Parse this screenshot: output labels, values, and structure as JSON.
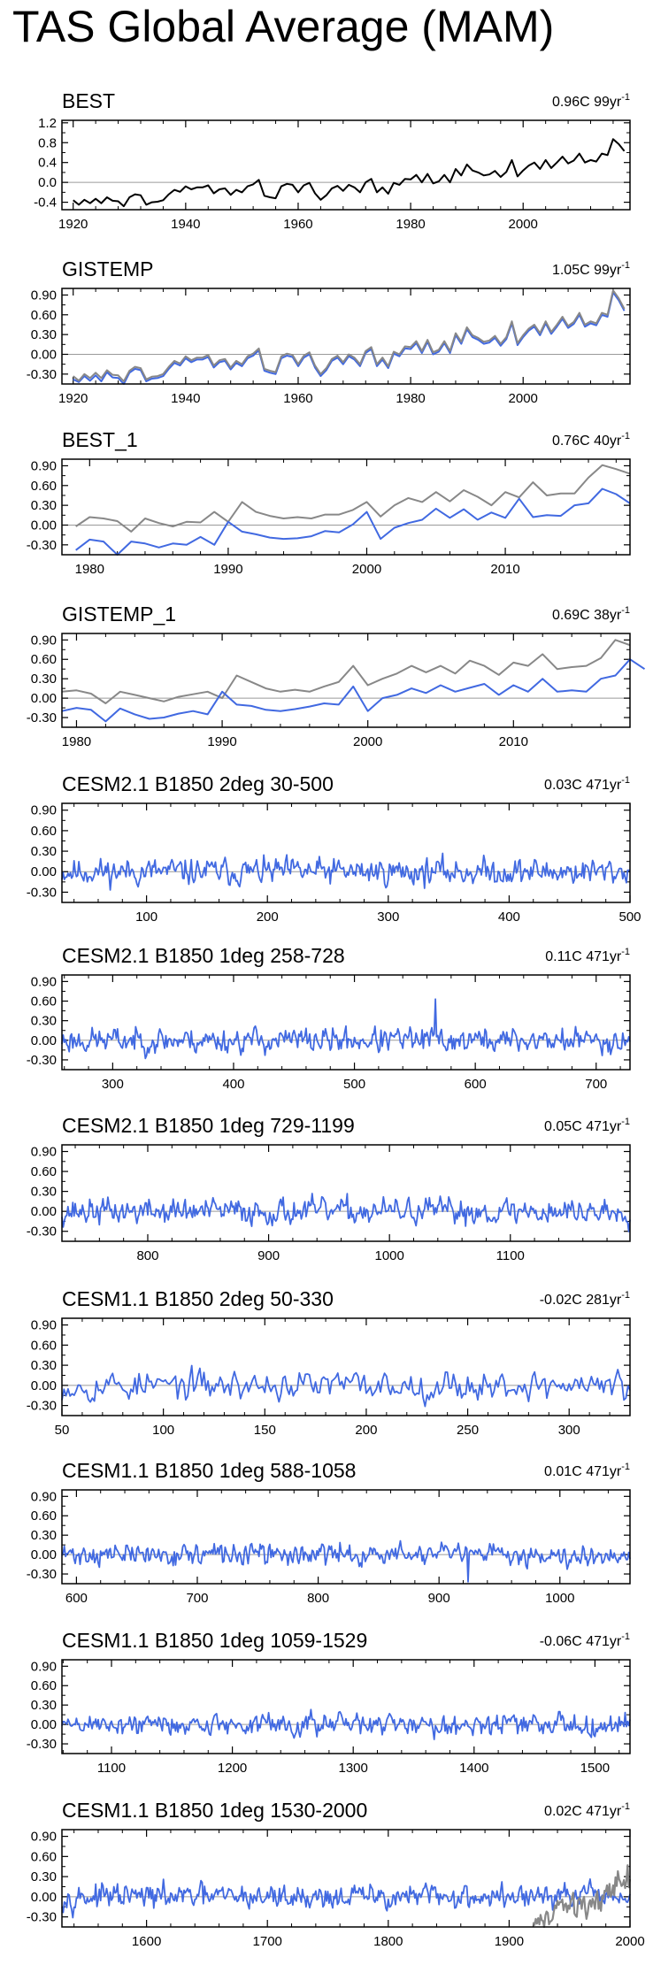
{
  "title": "TAS Global Average (MAM)",
  "colors": {
    "observed": "#000000",
    "model": "#4169e1",
    "reference": "#888888",
    "zero": "#aaaaaa"
  },
  "chart_data": [
    {
      "type": "line",
      "title": "BEST",
      "trend": "0.96C 99yr",
      "trend_base": "0.96C 99yr",
      "trend_exp": "-1",
      "xlim": [
        1918,
        2019
      ],
      "ylim": [
        -0.55,
        1.25
      ],
      "xticks": [
        1920,
        1940,
        1960,
        1980,
        2000
      ],
      "yticks": [
        -0.4,
        0.0,
        0.4,
        0.8,
        1.2
      ],
      "ytick_labels": [
        "-0.4",
        "0.0",
        "0.4",
        "0.8",
        "1.2"
      ],
      "series": [
        {
          "name": "BEST",
          "color": "#000000",
          "x0": 1920,
          "dx": 1,
          "values": [
            -0.36,
            -0.45,
            -0.35,
            -0.42,
            -0.33,
            -0.42,
            -0.3,
            -0.37,
            -0.38,
            -0.48,
            -0.3,
            -0.24,
            -0.26,
            -0.45,
            -0.4,
            -0.39,
            -0.36,
            -0.24,
            -0.15,
            -0.19,
            -0.08,
            -0.14,
            -0.1,
            -0.1,
            -0.06,
            -0.22,
            -0.14,
            -0.12,
            -0.25,
            -0.15,
            -0.2,
            -0.08,
            -0.04,
            0.05,
            -0.27,
            -0.3,
            -0.32,
            -0.08,
            -0.03,
            -0.05,
            -0.2,
            -0.06,
            -0.01,
            -0.22,
            -0.35,
            -0.26,
            -0.12,
            -0.07,
            -0.17,
            -0.05,
            -0.1,
            -0.2,
            0.0,
            0.07,
            -0.2,
            -0.1,
            -0.23,
            -0.01,
            -0.05,
            0.07,
            0.06,
            0.15,
            0.0,
            0.17,
            -0.02,
            0.02,
            0.15,
            0.0,
            0.27,
            0.14,
            0.36,
            0.24,
            0.2,
            0.14,
            0.16,
            0.23,
            0.11,
            0.21,
            0.45,
            0.12,
            0.24,
            0.34,
            0.4,
            0.27,
            0.45,
            0.29,
            0.4,
            0.52,
            0.38,
            0.44,
            0.58,
            0.4,
            0.45,
            0.42,
            0.58,
            0.55,
            0.87,
            0.77,
            0.63
          ]
        }
      ],
      "zero": 0
    },
    {
      "type": "line",
      "title": "GISTEMP",
      "trend": "1.05C 99yr",
      "trend_base": "1.05C 99yr",
      "trend_exp": "-1",
      "xlim": [
        1918,
        2019
      ],
      "ylim": [
        -0.45,
        1.0
      ],
      "xticks": [
        1920,
        1940,
        1960,
        1980,
        2000
      ],
      "yticks": [
        -0.3,
        0.0,
        0.3,
        0.6,
        0.9
      ],
      "ytick_labels": [
        "-0.30",
        "0.00",
        "0.30",
        "0.60",
        "0.90"
      ],
      "series": [
        {
          "name": "GISTEMP",
          "color": "#4169e1",
          "x0": 1920,
          "dx": 1,
          "values": [
            -0.38,
            -0.42,
            -0.33,
            -0.4,
            -0.32,
            -0.41,
            -0.27,
            -0.35,
            -0.36,
            -0.45,
            -0.28,
            -0.22,
            -0.24,
            -0.41,
            -0.37,
            -0.36,
            -0.33,
            -0.22,
            -0.13,
            -0.17,
            -0.06,
            -0.12,
            -0.08,
            -0.08,
            -0.04,
            -0.2,
            -0.12,
            -0.1,
            -0.23,
            -0.13,
            -0.18,
            -0.06,
            -0.02,
            0.06,
            -0.25,
            -0.28,
            -0.3,
            -0.06,
            -0.02,
            -0.04,
            -0.18,
            -0.05,
            0.0,
            -0.2,
            -0.33,
            -0.24,
            -0.1,
            -0.05,
            -0.15,
            -0.03,
            -0.08,
            -0.18,
            0.02,
            0.08,
            -0.18,
            -0.08,
            -0.21,
            0.01,
            -0.03,
            0.09,
            0.08,
            0.17,
            0.02,
            0.19,
            0.0,
            0.04,
            0.17,
            0.02,
            0.29,
            0.16,
            0.38,
            0.26,
            0.22,
            0.16,
            0.18,
            0.25,
            0.13,
            0.23,
            0.47,
            0.14,
            0.26,
            0.36,
            0.42,
            0.29,
            0.47,
            0.31,
            0.42,
            0.54,
            0.4,
            0.46,
            0.6,
            0.42,
            0.47,
            0.44,
            0.6,
            0.57,
            0.94,
            0.82,
            0.66
          ]
        },
        {
          "name": "BEST",
          "color": "#888888",
          "x0": 1920,
          "dx": 1,
          "values": [
            -0.33,
            -0.4,
            -0.3,
            -0.36,
            -0.28,
            -0.36,
            -0.24,
            -0.31,
            -0.32,
            -0.41,
            -0.25,
            -0.19,
            -0.21,
            -0.38,
            -0.34,
            -0.33,
            -0.3,
            -0.19,
            -0.1,
            -0.14,
            -0.03,
            -0.09,
            -0.05,
            -0.05,
            -0.01,
            -0.17,
            -0.09,
            -0.07,
            -0.2,
            -0.1,
            -0.15,
            -0.03,
            0.01,
            0.09,
            -0.22,
            -0.25,
            -0.27,
            -0.03,
            0.01,
            -0.01,
            -0.15,
            -0.02,
            0.03,
            -0.17,
            -0.3,
            -0.21,
            -0.07,
            -0.02,
            -0.12,
            0.0,
            -0.05,
            -0.15,
            0.05,
            0.11,
            -0.15,
            -0.05,
            -0.18,
            0.04,
            0.0,
            0.12,
            0.11,
            0.2,
            0.05,
            0.22,
            0.03,
            0.07,
            0.2,
            0.05,
            0.32,
            0.19,
            0.41,
            0.29,
            0.25,
            0.19,
            0.21,
            0.28,
            0.16,
            0.26,
            0.5,
            0.17,
            0.29,
            0.39,
            0.45,
            0.32,
            0.5,
            0.34,
            0.45,
            0.57,
            0.43,
            0.49,
            0.63,
            0.45,
            0.5,
            0.47,
            0.63,
            0.6,
            0.97,
            0.85,
            0.69
          ]
        }
      ],
      "zero": 0
    },
    {
      "type": "line",
      "title": "BEST_1",
      "trend": "0.76C 40yr",
      "trend_base": "0.76C 40yr",
      "trend_exp": "-1",
      "xlim": [
        1978,
        2019
      ],
      "ylim": [
        -0.45,
        1.0
      ],
      "xticks": [
        1980,
        1990,
        2000,
        2010
      ],
      "yticks": [
        -0.3,
        0.0,
        0.3,
        0.6,
        0.9
      ],
      "ytick_labels": [
        "-0.30",
        "0.00",
        "0.30",
        "0.60",
        "0.90"
      ],
      "series": [
        {
          "name": "reference",
          "color": "#888888",
          "x0": 1979,
          "dx": 1,
          "values": [
            -0.02,
            0.12,
            0.1,
            0.06,
            -0.1,
            0.1,
            0.03,
            -0.02,
            0.05,
            0.04,
            0.2,
            0.05,
            0.35,
            0.2,
            0.14,
            0.1,
            0.12,
            0.1,
            0.16,
            0.16,
            0.23,
            0.35,
            0.13,
            0.3,
            0.41,
            0.35,
            0.5,
            0.36,
            0.53,
            0.43,
            0.3,
            0.5,
            0.42,
            0.65,
            0.45,
            0.48,
            0.48,
            0.72,
            0.91,
            0.85,
            0.78
          ]
        },
        {
          "name": "model",
          "color": "#4169e1",
          "x0": 1979,
          "dx": 1,
          "values": [
            -0.38,
            -0.22,
            -0.25,
            -0.48,
            -0.25,
            -0.28,
            -0.34,
            -0.28,
            -0.3,
            -0.18,
            -0.3,
            0.05,
            -0.1,
            -0.14,
            -0.19,
            -0.21,
            -0.2,
            -0.17,
            -0.09,
            -0.11,
            0.01,
            0.2,
            -0.21,
            -0.04,
            0.03,
            0.08,
            0.25,
            0.11,
            0.24,
            0.08,
            0.19,
            0.11,
            0.4,
            0.12,
            0.15,
            0.14,
            0.3,
            0.33,
            0.55,
            0.47,
            0.33
          ]
        }
      ],
      "zero": 0
    },
    {
      "type": "line",
      "title": "GISTEMP_1",
      "trend": "0.69C 38yr",
      "trend_base": "0.69C 38yr",
      "trend_exp": "-1",
      "xlim": [
        1979,
        2018
      ],
      "ylim": [
        -0.45,
        1.0
      ],
      "xticks": [
        1980,
        1990,
        2000,
        2010
      ],
      "yticks": [
        -0.3,
        0.0,
        0.3,
        0.6,
        0.9
      ],
      "ytick_labels": [
        "-0.30",
        "0.00",
        "0.30",
        "0.60",
        "0.90"
      ],
      "series": [
        {
          "name": "reference",
          "color": "#888888",
          "x0": 1979,
          "dx": 1,
          "values": [
            0.1,
            0.12,
            0.07,
            -0.08,
            0.1,
            0.05,
            0.0,
            -0.05,
            0.02,
            0.06,
            0.1,
            0.0,
            0.35,
            0.25,
            0.15,
            0.1,
            0.13,
            0.1,
            0.18,
            0.25,
            0.5,
            0.2,
            0.3,
            0.38,
            0.5,
            0.4,
            0.5,
            0.38,
            0.58,
            0.5,
            0.36,
            0.55,
            0.5,
            0.68,
            0.45,
            0.48,
            0.5,
            0.62,
            0.9,
            0.82
          ]
        },
        {
          "name": "model",
          "color": "#4169e1",
          "x0": 1979,
          "dx": 1,
          "values": [
            -0.2,
            -0.15,
            -0.18,
            -0.36,
            -0.16,
            -0.25,
            -0.32,
            -0.3,
            -0.24,
            -0.2,
            -0.25,
            0.1,
            -0.1,
            -0.12,
            -0.18,
            -0.2,
            -0.17,
            -0.13,
            -0.08,
            -0.1,
            0.18,
            -0.2,
            0.0,
            0.05,
            0.15,
            0.08,
            0.2,
            0.1,
            0.16,
            0.22,
            0.05,
            0.2,
            0.1,
            0.3,
            0.1,
            0.12,
            0.1,
            0.3,
            0.35,
            0.6,
            0.45
          ]
        }
      ],
      "zero": 0
    },
    {
      "type": "line",
      "title": "CESM2.1 B1850 2deg 30-500",
      "trend": "0.03C 471yr",
      "trend_base": "0.03C 471yr",
      "trend_exp": "-1",
      "xlim": [
        30,
        500
      ],
      "ylim": [
        -0.45,
        1.0
      ],
      "xticks": [
        100,
        200,
        300,
        400,
        500
      ],
      "yticks": [
        -0.3,
        0.0,
        0.3,
        0.6,
        0.9
      ],
      "ytick_labels": [
        "-0.30",
        "0.00",
        "0.30",
        "0.60",
        "0.90"
      ],
      "noise": {
        "start": 30,
        "end": 500,
        "seed": 11,
        "amp": 0.14,
        "color": "#4169e1"
      },
      "zero": 0
    },
    {
      "type": "line",
      "title": "CESM2.1 B1850 1deg 258-728",
      "trend": "0.11C 471yr",
      "trend_base": "0.11C 471yr",
      "trend_exp": "-1",
      "xlim": [
        258,
        728
      ],
      "ylim": [
        -0.45,
        1.0
      ],
      "xticks": [
        300,
        400,
        500,
        600,
        700
      ],
      "yticks": [
        -0.3,
        0.0,
        0.3,
        0.6,
        0.9
      ],
      "ytick_labels": [
        "-0.30",
        "0.00",
        "0.30",
        "0.60",
        "0.90"
      ],
      "noise": {
        "start": 258,
        "end": 728,
        "seed": 23,
        "amp": 0.14,
        "color": "#4169e1",
        "spike": [
          567,
          0.63
        ]
      },
      "zero": 0
    },
    {
      "type": "line",
      "title": "CESM2.1 B1850 1deg 729-1199",
      "trend": "0.05C 471yr",
      "trend_base": "0.05C 471yr",
      "trend_exp": "-1",
      "xlim": [
        729,
        1199
      ],
      "ylim": [
        -0.45,
        1.0
      ],
      "xticks": [
        800,
        900,
        1000,
        1100
      ],
      "yticks": [
        -0.3,
        0.0,
        0.3,
        0.6,
        0.9
      ],
      "ytick_labels": [
        "-0.30",
        "0.00",
        "0.30",
        "0.60",
        "0.90"
      ],
      "noise": {
        "start": 729,
        "end": 1199,
        "seed": 37,
        "amp": 0.14,
        "color": "#4169e1"
      },
      "zero": 0
    },
    {
      "type": "line",
      "title": "CESM1.1 B1850 2deg 50-330",
      "trend": "-0.02C 281yr",
      "trend_base": "-0.02C 281yr",
      "trend_exp": "-1",
      "xlim": [
        50,
        330
      ],
      "ylim": [
        -0.45,
        1.0
      ],
      "xticks": [
        50,
        100,
        150,
        200,
        250,
        300
      ],
      "yticks": [
        -0.3,
        0.0,
        0.3,
        0.6,
        0.9
      ],
      "ytick_labels": [
        "-0.30",
        "0.00",
        "0.30",
        "0.60",
        "0.90"
      ],
      "noise": {
        "start": 50,
        "end": 330,
        "seed": 53,
        "amp": 0.16,
        "color": "#4169e1"
      },
      "zero": 0
    },
    {
      "type": "line",
      "title": "CESM1.1 B1850 1deg 588-1058",
      "trend": "0.01C 471yr",
      "trend_base": "0.01C 471yr",
      "trend_exp": "-1",
      "xlim": [
        588,
        1058
      ],
      "ylim": [
        -0.45,
        1.0
      ],
      "xticks": [
        600,
        700,
        800,
        900,
        1000
      ],
      "yticks": [
        -0.3,
        0.0,
        0.3,
        0.6,
        0.9
      ],
      "ytick_labels": [
        "-0.30",
        "0.00",
        "0.30",
        "0.60",
        "0.90"
      ],
      "noise": {
        "start": 588,
        "end": 1058,
        "seed": 71,
        "amp": 0.12,
        "color": "#4169e1",
        "spike": [
          924,
          -0.42
        ]
      },
      "zero": 0
    },
    {
      "type": "line",
      "title": "CESM1.1 B1850 1deg 1059-1529",
      "trend": "-0.06C 471yr",
      "trend_base": "-0.06C 471yr",
      "trend_exp": "-1",
      "xlim": [
        1059,
        1529
      ],
      "ylim": [
        -0.45,
        1.0
      ],
      "xticks": [
        1100,
        1200,
        1300,
        1400,
        1500
      ],
      "yticks": [
        -0.3,
        0.0,
        0.3,
        0.6,
        0.9
      ],
      "ytick_labels": [
        "-0.30",
        "0.00",
        "0.30",
        "0.60",
        "0.90"
      ],
      "noise": {
        "start": 1059,
        "end": 1529,
        "seed": 89,
        "amp": 0.12,
        "color": "#4169e1"
      },
      "zero": 0
    },
    {
      "type": "line",
      "title": "CESM1.1 B1850 1deg 1530-2000",
      "trend": "0.02C 471yr",
      "trend_base": "0.02C 471yr",
      "trend_exp": "-1",
      "xlim": [
        1530,
        2000
      ],
      "ylim": [
        -0.45,
        1.0
      ],
      "xticks": [
        1600,
        1700,
        1800,
        1900,
        2000
      ],
      "yticks": [
        -0.3,
        0.0,
        0.3,
        0.6,
        0.9
      ],
      "ytick_labels": [
        "-0.30",
        "0.00",
        "0.30",
        "0.60",
        "0.90"
      ],
      "noise": {
        "start": 1530,
        "end": 2000,
        "seed": 97,
        "amp": 0.13,
        "color": "#4169e1"
      },
      "overlay": {
        "name": "observed",
        "color": "#888888",
        "x0": 1920,
        "dx": 1,
        "values": [
          -0.38,
          -0.42,
          -0.33,
          -0.4,
          -0.32,
          -0.41,
          -0.27,
          -0.35,
          -0.36,
          -0.45,
          -0.28,
          -0.22,
          -0.24,
          -0.41,
          -0.37,
          -0.36,
          -0.33,
          -0.22,
          -0.13,
          -0.17,
          -0.06,
          -0.12,
          -0.08,
          -0.08,
          -0.04,
          -0.2,
          -0.12,
          -0.1,
          -0.23,
          -0.13,
          -0.18,
          -0.06,
          -0.02,
          0.06,
          -0.25,
          -0.28,
          -0.3,
          -0.06,
          -0.02,
          -0.04,
          -0.18,
          -0.05,
          0.0,
          -0.2,
          -0.33,
          -0.24,
          -0.1,
          -0.05,
          -0.15,
          -0.03,
          -0.08,
          -0.18,
          0.02,
          0.08,
          -0.18,
          -0.08,
          -0.21,
          0.01,
          -0.03,
          0.09,
          0.08,
          0.17,
          0.02,
          0.19,
          0.0,
          0.04,
          0.17,
          0.02,
          0.29,
          0.16,
          0.38,
          0.26,
          0.22,
          0.16,
          0.18,
          0.25,
          0.13,
          0.23,
          0.47,
          0.14,
          0.26
        ]
      },
      "zero": 0
    }
  ]
}
